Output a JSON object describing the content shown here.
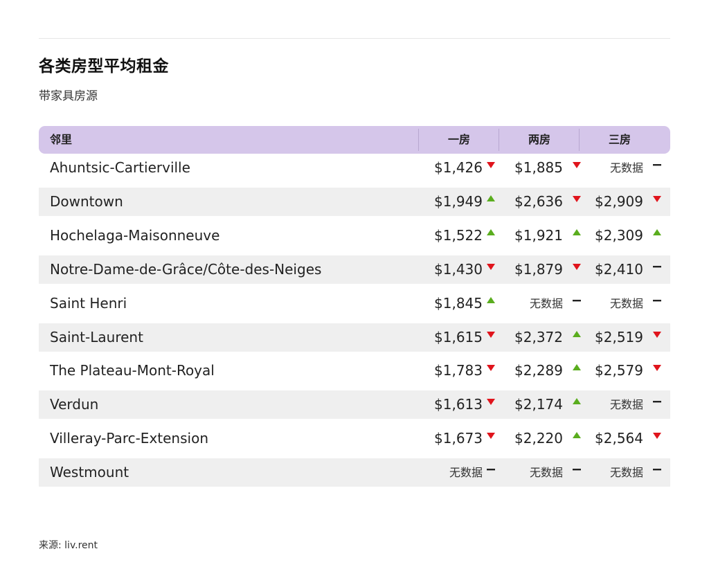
{
  "title": "各类房型平均租金",
  "subtitle": "带家具房源",
  "table": {
    "headers": {
      "name": "邻里",
      "col1": "一房",
      "col2": "两房",
      "col3": "三房"
    },
    "rows": [
      {
        "name": "Ahuntsic-Cartierville",
        "c1": "$1,426",
        "t1": "down",
        "c2": "$1,885",
        "t2": "down",
        "c3": "无数据",
        "t3": "flat"
      },
      {
        "name": "Downtown",
        "c1": "$1,949",
        "t1": "up",
        "c2": "$2,636",
        "t2": "down",
        "c3": "$2,909",
        "t3": "down"
      },
      {
        "name": "Hochelaga-Maisonneuve",
        "c1": "$1,522",
        "t1": "up",
        "c2": "$1,921",
        "t2": "up",
        "c3": "$2,309",
        "t3": "up"
      },
      {
        "name": "Notre-Dame-de-Grâce/Côte-des-Neiges",
        "c1": "$1,430",
        "t1": "down",
        "c2": "$1,879",
        "t2": "down",
        "c3": "$2,410",
        "t3": "flat"
      },
      {
        "name": "Saint Henri",
        "c1": "$1,845",
        "t1": "up",
        "c2": "无数据",
        "t2": "flat",
        "c3": "无数据",
        "t3": "flat"
      },
      {
        "name": "Saint-Laurent",
        "c1": "$1,615",
        "t1": "down",
        "c2": "$2,372",
        "t2": "up",
        "c3": "$2,519",
        "t3": "down"
      },
      {
        "name": "The Plateau-Mont-Royal",
        "c1": "$1,783",
        "t1": "down",
        "c2": "$2,289",
        "t2": "up",
        "c3": "$2,579",
        "t3": "down"
      },
      {
        "name": "Verdun",
        "c1": "$1,613",
        "t1": "down",
        "c2": "$2,174",
        "t2": "up",
        "c3": "无数据",
        "t3": "flat"
      },
      {
        "name": "Villeray-Parc-Extension",
        "c1": "$1,673",
        "t1": "down",
        "c2": "$2,220",
        "t2": "up",
        "c3": "$2,564",
        "t3": "down"
      },
      {
        "name": "Westmount",
        "c1": "无数据",
        "t1": "flat",
        "c2": "无数据",
        "t2": "flat",
        "c3": "无数据",
        "t3": "flat"
      }
    ]
  },
  "footer": {
    "source": "来源: liv.rent"
  },
  "colors": {
    "header_bg": "#d5c6ea",
    "row_alt_bg": "#efefef",
    "up": "#5aad1e",
    "down": "#e0141c",
    "flat": "#222222"
  },
  "icons": {
    "up": "triangle-up-icon",
    "down": "triangle-down-icon",
    "flat": "dash-icon"
  }
}
